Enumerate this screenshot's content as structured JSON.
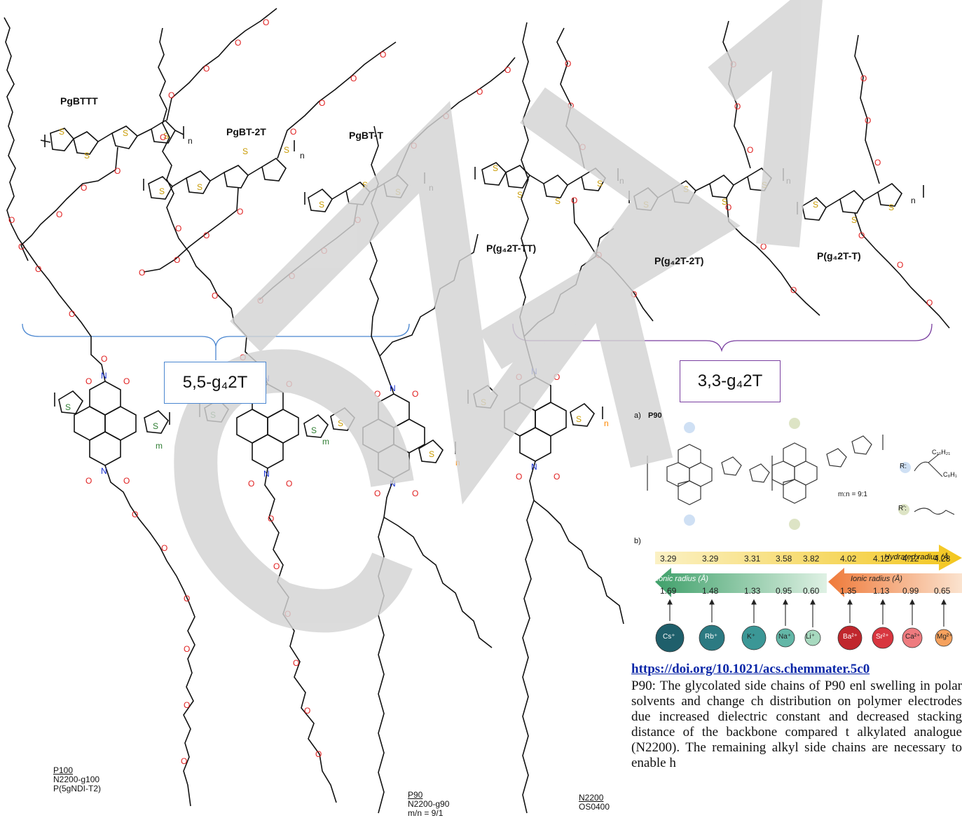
{
  "top_left": {
    "names": [
      "PgBTTT",
      "PgBT-2T",
      "PgBT-T"
    ],
    "group_box": "5,5-g₄2T"
  },
  "top_right": {
    "names": [
      "P(g₄2T-TT)",
      "P(g₄2T-2T)",
      "P(g₄2T-T)"
    ],
    "group_box": "3,3-g₄2T"
  },
  "bottom": {
    "p100": [
      "P100",
      "N2200-g100",
      "P(5gNDI-T2)"
    ],
    "p90": [
      "P90",
      "N2200-g90",
      "m/n = 9/1"
    ],
    "n2200": [
      "N2200",
      "OS0400"
    ],
    "subscripts": {
      "m": "m",
      "n": "n",
      "atom_s": "S",
      "atom_o": "O",
      "atom_n": "N"
    }
  },
  "inset": {
    "panel_a": "a)",
    "title": "P90",
    "ratio": "m:n = 9:1",
    "r_label": "R:",
    "r_prime_label": "R':",
    "r_chain": "C₁₀H₂₁",
    "r_chain2": "C₈H₁",
    "panel_b": "b)",
    "hydrated_label": "Hydrated radius (Å",
    "hydrated_values": [
      "3.29",
      "3.29",
      "3.31",
      "3.58",
      "3.82",
      "4.02",
      "4.12",
      "4.12",
      "4.28"
    ],
    "ionic_label_1": "Ionic radius (Å)",
    "ionic_label_2": "Ionic radius (Å)",
    "ionic_values": [
      "1.69",
      "1.48",
      "1.33",
      "0.95",
      "0.60",
      "1.35",
      "1.13",
      "0.99",
      "0.65"
    ],
    "ions": [
      "Cs⁺",
      "Rb⁺",
      "K⁺",
      "Na⁺",
      "Li⁺",
      "Ba²⁺",
      "Sr²⁺",
      "Ca²⁺",
      "Mg²⁺"
    ],
    "ion_colors": [
      "#1f5f6b",
      "#2c7a82",
      "#3b9796",
      "#63b7a7",
      "#a7d9bf",
      "#c0272d",
      "#d8363f",
      "#ee7b7f",
      "#f6a25e"
    ]
  },
  "reference": {
    "doi": "https://doi.org/10.1021/acs.chemmater.5c0",
    "paragraph": "P90: The glycolated side chains of P90 enl swelling in polar solvents and change ch distribution on polymer electrodes due increased dielectric constant and decreased stacking distance of the backbone compared t alkylated analogue (N2200). The remaining alkyl side chains are necessary to enable h"
  },
  "colors": {
    "sulfur": "#c89a00",
    "oxygen": "#e02020",
    "nitrogen": "#1a32d0",
    "blue_brace": "#4a86d0",
    "purple_brace": "#7a3fa0",
    "watermark": "#d4d4d4"
  }
}
